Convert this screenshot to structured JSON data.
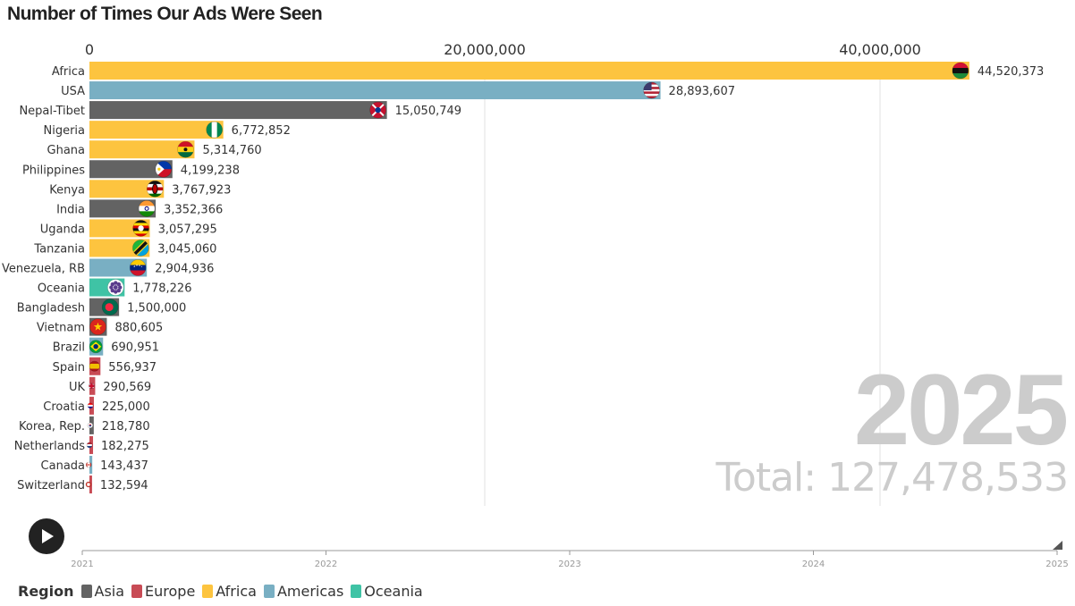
{
  "title": "Number of Times Our Ads Were Seen",
  "year_label": "2025",
  "total_label": "Total: 127,478,533",
  "colors": {
    "Asia": "#636363",
    "Europe": "#c84b55",
    "Africa": "#fdc43f",
    "Americas": "#79afc3",
    "Oceania": "#3fc3a5"
  },
  "legend": {
    "title": "Region",
    "items": [
      "Asia",
      "Europe",
      "Africa",
      "Americas",
      "Oceania"
    ]
  },
  "timeline": {
    "ticks": [
      "2021",
      "2022",
      "2023",
      "2024",
      "2025"
    ],
    "position": 1.0,
    "play_icon": "play-icon"
  },
  "chart_data": {
    "type": "bar",
    "orientation": "horizontal",
    "title": "Number of Times Our Ads Were Seen",
    "xaxis_ticks": [
      0,
      20000000,
      40000000
    ],
    "xaxis_tick_labels": [
      "0",
      "20,000,000",
      "40,000,000"
    ],
    "xlim": [
      0,
      49000000
    ],
    "grid": true,
    "categories": [
      "Africa",
      "USA",
      "Nepal-Tibet",
      "Nigeria",
      "Ghana",
      "Philippines",
      "Kenya",
      "India",
      "Uganda",
      "Tanzania",
      "Venezuela, RB",
      "Oceania",
      "Bangladesh",
      "Vietnam",
      "Brazil",
      "Spain",
      "UK",
      "Croatia",
      "Korea, Rep.",
      "Netherlands",
      "Canada",
      "Switzerland"
    ],
    "values": [
      44520373,
      28893607,
      15050749,
      6772852,
      5314760,
      4199238,
      3767923,
      3352366,
      3057295,
      3045060,
      2904936,
      1778226,
      1500000,
      880605,
      690951,
      556937,
      290569,
      225000,
      218780,
      182275,
      143437,
      132594
    ],
    "value_labels": [
      "44,520,373",
      "28,893,607",
      "15,050,749",
      "6,772,852",
      "5,314,760",
      "4,199,238",
      "3,767,923",
      "3,352,366",
      "3,057,295",
      "3,045,060",
      "2,904,936",
      "1,778,226",
      "1,500,000",
      "880,605",
      "690,951",
      "556,937",
      "290,569",
      "225,000",
      "218,780",
      "182,275",
      "143,437",
      "132,594"
    ],
    "regions": [
      "Africa",
      "Americas",
      "Asia",
      "Africa",
      "Africa",
      "Asia",
      "Africa",
      "Asia",
      "Africa",
      "Africa",
      "Americas",
      "Oceania",
      "Asia",
      "Asia",
      "Americas",
      "Europe",
      "Europe",
      "Europe",
      "Asia",
      "Europe",
      "Americas",
      "Europe"
    ],
    "flag_icons": [
      "pan-african-flag-icon",
      "usa-flag-icon",
      "nepal-tibet-flag-icon",
      "nigeria-flag-icon",
      "ghana-flag-icon",
      "philippines-flag-icon",
      "kenya-flag-icon",
      "india-flag-icon",
      "uganda-flag-icon",
      "tanzania-flag-icon",
      "venezuela-flag-icon",
      "oceania-flag-icon",
      "bangladesh-flag-icon",
      "vietnam-flag-icon",
      "brazil-flag-icon",
      "spain-flag-icon",
      "uk-flag-icon",
      "croatia-flag-icon",
      "korea-flag-icon",
      "netherlands-flag-icon",
      "canada-flag-icon",
      "switzerland-flag-icon"
    ]
  }
}
